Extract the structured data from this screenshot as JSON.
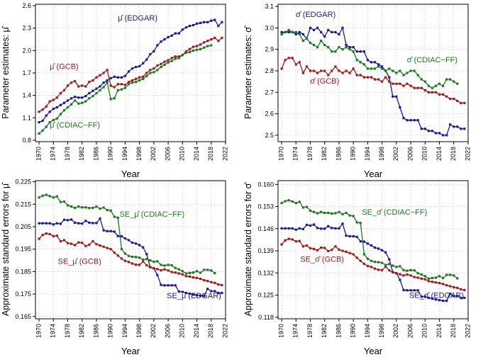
{
  "colors": {
    "EDGAR": "#1a1a9c",
    "GCB": "#a31a1a",
    "CDIAC-FF": "#1f7a1f",
    "grid": "#b8b8b8",
    "axis": "#000000"
  },
  "chart_data": [
    {
      "type": "line",
      "panel": "top-left",
      "xlabel": "Year",
      "ylabel": "Parameter estimates: μ̂",
      "xticks": [
        1970,
        1974,
        1978,
        1982,
        1986,
        1990,
        1994,
        1998,
        2002,
        2006,
        2010,
        2014,
        2018,
        2022
      ],
      "yticks": [
        "0.8",
        "1.1",
        "1.4",
        "1.7",
        "2.0",
        "2.3",
        "2.6"
      ],
      "xlim": [
        1969,
        2022
      ],
      "ylim": [
        0.78,
        2.62
      ],
      "grid": true,
      "annotations": [
        {
          "label": "μ̂ (EDGAR)",
          "series": "EDGAR",
          "x": 1997.5,
          "y": 2.4
        },
        {
          "label": "μ̂ (GCB)",
          "series": "GCB",
          "x": 1977,
          "y": 1.75
        },
        {
          "label": "μ̂ (CDIAC−FF)",
          "series": "CDIAC-FF",
          "x": 1980,
          "y": 0.97
        }
      ],
      "series": [
        {
          "name": "EDGAR",
          "x_start": 1970,
          "values": [
            1.04,
            1.06,
            1.13,
            1.18,
            1.22,
            1.24,
            1.27,
            1.3,
            1.33,
            1.36,
            1.38,
            1.37,
            1.37,
            1.39,
            1.43,
            1.46,
            1.49,
            1.52,
            1.57,
            1.6,
            1.63,
            1.65,
            1.64,
            1.64,
            1.66,
            1.72,
            1.76,
            1.78,
            1.79,
            1.83,
            1.88,
            1.95,
            1.99,
            2.07,
            2.12,
            2.15,
            2.18,
            2.2,
            2.23,
            2.23,
            2.28,
            2.31,
            2.33,
            2.34,
            2.36,
            2.37,
            2.38,
            2.38,
            2.4,
            2.41,
            2.33,
            2.38
          ]
        },
        {
          "name": "GCB",
          "x_start": 1970,
          "values": [
            1.18,
            1.21,
            1.25,
            1.32,
            1.34,
            1.37,
            1.43,
            1.47,
            1.53,
            1.57,
            1.59,
            1.52,
            1.53,
            1.52,
            1.58,
            1.6,
            1.64,
            1.67,
            1.7,
            1.74,
            1.53,
            1.51,
            1.55,
            1.55,
            1.54,
            1.58,
            1.6,
            1.62,
            1.64,
            1.65,
            1.7,
            1.74,
            1.76,
            1.8,
            1.82,
            1.85,
            1.87,
            1.9,
            1.92,
            1.92,
            1.94,
            1.99,
            2.02,
            2.05,
            2.06,
            2.08,
            2.11,
            2.13,
            2.15,
            2.17,
            2.13,
            2.17
          ]
        },
        {
          "name": "CDIAC-FF",
          "x_start": 1970,
          "values": [
            0.89,
            0.93,
            0.98,
            1.04,
            1.07,
            1.09,
            1.15,
            1.2,
            1.24,
            1.28,
            1.33,
            1.29,
            1.3,
            1.32,
            1.36,
            1.39,
            1.43,
            1.47,
            1.51,
            1.57,
            1.35,
            1.36,
            1.47,
            1.48,
            1.5,
            1.55,
            1.57,
            1.58,
            1.6,
            1.62,
            1.66,
            1.7,
            1.71,
            1.74,
            1.78,
            1.81,
            1.84,
            1.86,
            1.89,
            1.9,
            1.94,
            1.97,
            1.98,
            2.0,
            2.01,
            2.02,
            2.04,
            2.06,
            2.07
          ]
        }
      ]
    },
    {
      "type": "line",
      "panel": "top-right",
      "xlabel": "Year",
      "ylabel": "Parameter estimates: σ̂",
      "xticks": [
        1970,
        1974,
        1978,
        1982,
        1986,
        1990,
        1994,
        1998,
        2002,
        2006,
        2010,
        2014,
        2018,
        2022
      ],
      "yticks": [
        "2.5",
        "2.6",
        "2.7",
        "2.8",
        "2.9",
        "3.0",
        "3.1"
      ],
      "xlim": [
        1969,
        2022
      ],
      "ylim": [
        2.47,
        3.11
      ],
      "grid": true,
      "annotations": [
        {
          "label": "σ̂ (EDGAR)",
          "series": "EDGAR",
          "x": 1979.5,
          "y": 3.05
        },
        {
          "label": "σ̂ (CDIAC−FF)",
          "series": "CDIAC-FF",
          "x": 2012,
          "y": 2.84
        },
        {
          "label": "σ̂ (GCB)",
          "series": "GCB",
          "x": 1982,
          "y": 2.74
        }
      ],
      "series": [
        {
          "name": "EDGAR",
          "x_start": 1970,
          "values": [
            2.98,
            2.98,
            2.98,
            2.98,
            2.97,
            2.98,
            2.97,
            2.95,
            3.0,
            2.99,
            3.0,
            2.98,
            2.96,
            2.99,
            2.98,
            2.98,
            2.97,
            3.0,
            2.92,
            2.91,
            2.91,
            2.89,
            2.89,
            2.89,
            2.85,
            2.84,
            2.84,
            2.83,
            2.82,
            2.8,
            2.77,
            2.68,
            2.68,
            2.63,
            2.58,
            2.57,
            2.57,
            2.57,
            2.57,
            2.53,
            2.53,
            2.52,
            2.52,
            2.51,
            2.51,
            2.5,
            2.5,
            2.55,
            2.54,
            2.54,
            2.53,
            2.53
          ]
        },
        {
          "name": "GCB",
          "x_start": 1970,
          "values": [
            2.81,
            2.85,
            2.86,
            2.86,
            2.83,
            2.84,
            2.79,
            2.82,
            2.8,
            2.8,
            2.79,
            2.8,
            2.8,
            2.78,
            2.8,
            2.82,
            2.8,
            2.79,
            2.8,
            2.79,
            2.81,
            2.78,
            2.78,
            2.77,
            2.77,
            2.77,
            2.76,
            2.76,
            2.75,
            2.77,
            2.75,
            2.74,
            2.74,
            2.74,
            2.73,
            2.74,
            2.73,
            2.72,
            2.72,
            2.72,
            2.71,
            2.7,
            2.7,
            2.7,
            2.69,
            2.69,
            2.68,
            2.67,
            2.67,
            2.66,
            2.65,
            2.65
          ]
        },
        {
          "name": "CDIAC-FF",
          "x_start": 1970,
          "values": [
            2.97,
            2.98,
            2.99,
            2.98,
            2.98,
            2.97,
            2.94,
            2.95,
            2.93,
            2.92,
            2.91,
            2.94,
            2.92,
            2.91,
            2.89,
            2.89,
            2.91,
            2.9,
            2.91,
            2.9,
            2.89,
            2.85,
            2.84,
            2.83,
            2.81,
            2.81,
            2.81,
            2.82,
            2.81,
            2.8,
            2.81,
            2.8,
            2.79,
            2.8,
            2.78,
            2.79,
            2.8,
            2.8,
            2.78,
            2.76,
            2.75,
            2.73,
            2.72,
            2.73,
            2.74,
            2.73,
            2.76,
            2.76,
            2.75,
            2.74
          ]
        }
      ]
    },
    {
      "type": "line",
      "panel": "bottom-left",
      "xlabel": "Year",
      "ylabel": "Approximate standard errors for μ̂",
      "xticks": [
        1970,
        1974,
        1978,
        1982,
        1986,
        1990,
        1994,
        1998,
        2002,
        2006,
        2010,
        2014,
        2018,
        2022
      ],
      "yticks": [
        "0.165",
        "0.175",
        "0.185",
        "0.195",
        "0.205",
        "0.215",
        "0.225"
      ],
      "xlim": [
        1969,
        2022
      ],
      "ylim": [
        0.164,
        0.2255
      ],
      "grid": true,
      "annotations": [
        {
          "label": "SE_μ̂ (CDIAC−FF)",
          "series": "CDIAC-FF",
          "x": 2001.5,
          "y": 0.2094
        },
        {
          "label": "SE_μ̂ (GCB)",
          "series": "GCB",
          "x": 1981.3,
          "y": 0.1885
        },
        {
          "label": "SE_μ̂ (EDGAR)",
          "series": "EDGAR",
          "x": 2013.2,
          "y": 0.1732
        }
      ],
      "series": [
        {
          "name": "EDGAR",
          "x_start": 1970,
          "values": [
            0.2065,
            0.2065,
            0.2065,
            0.2065,
            0.206,
            0.2065,
            0.2063,
            0.2081,
            0.2079,
            0.2082,
            0.2068,
            0.2065,
            0.2064,
            0.2076,
            0.2068,
            0.2066,
            0.2066,
            0.2086,
            0.2034,
            0.203,
            0.203,
            0.2028,
            0.2008,
            0.2007,
            0.1998,
            0.199,
            0.1979,
            0.1975,
            0.1968,
            0.1958,
            0.1928,
            0.187,
            0.1865,
            0.1835,
            0.1791,
            0.1789,
            0.1789,
            0.1789,
            0.1789,
            0.1761,
            0.176,
            0.1755,
            0.1752,
            0.1748,
            0.1745,
            0.1743,
            0.1742,
            0.1773,
            0.1763,
            0.1763,
            0.1755,
            0.1755
          ]
        },
        {
          "name": "GCB",
          "x_start": 1970,
          "values": [
            0.1996,
            0.2013,
            0.202,
            0.2017,
            0.2008,
            0.201,
            0.1985,
            0.199,
            0.1977,
            0.1974,
            0.1968,
            0.198,
            0.1978,
            0.1964,
            0.197,
            0.1985,
            0.1972,
            0.1966,
            0.1961,
            0.1955,
            0.195,
            0.1935,
            0.1921,
            0.1908,
            0.1898,
            0.1893,
            0.1886,
            0.1881,
            0.188,
            0.1895,
            0.1878,
            0.187,
            0.1865,
            0.1861,
            0.1856,
            0.186,
            0.1855,
            0.1848,
            0.1846,
            0.1842,
            0.1838,
            0.183,
            0.1828,
            0.1824,
            0.1822,
            0.1818,
            0.1812,
            0.1808,
            0.1803,
            0.18,
            0.1793,
            0.179
          ]
        },
        {
          "name": "CDIAC-FF",
          "x_start": 1970,
          "values": [
            0.218,
            0.2188,
            0.2192,
            0.2186,
            0.218,
            0.2185,
            0.216,
            0.2162,
            0.2145,
            0.214,
            0.2134,
            0.214,
            0.2136,
            0.2136,
            0.2133,
            0.2134,
            0.214,
            0.213,
            0.2135,
            0.2124,
            0.2122,
            0.2094,
            0.209,
            0.195,
            0.193,
            0.192,
            0.1916,
            0.1915,
            0.1912,
            0.1903,
            0.1906,
            0.19,
            0.1894,
            0.1896,
            0.188,
            0.1877,
            0.188,
            0.1878,
            0.1866,
            0.186,
            0.1852,
            0.1842,
            0.1844,
            0.1846,
            0.1852,
            0.1845,
            0.1858,
            0.1858,
            0.1855,
            0.1843
          ]
        }
      ]
    },
    {
      "type": "line",
      "panel": "bottom-right",
      "xlabel": "Year",
      "ylabel": "Approximate standard errors for σ̂",
      "xticks": [
        1970,
        1974,
        1978,
        1982,
        1986,
        1990,
        1994,
        1998,
        2002,
        2006,
        2010,
        2014,
        2018,
        2022
      ],
      "yticks": [
        "0.118",
        "0.125",
        "0.132",
        "0.139",
        "0.146",
        "0.153",
        "0.160"
      ],
      "xlim": [
        1969,
        2022
      ],
      "ylim": [
        0.1175,
        0.1612
      ],
      "grid": true,
      "annotations": [
        {
          "label": "SE_σ̂ (CDIAC−FF)",
          "series": "CDIAC-FF",
          "x": 2001.5,
          "y": 0.1504
        },
        {
          "label": "SE_σ̂ (GCB)",
          "series": "GCB",
          "x": 1981.3,
          "y": 0.1355
        },
        {
          "label": "SE_σ̂ (EDGAR)",
          "series": "EDGAR",
          "x": 2013.2,
          "y": 0.1241
        }
      ],
      "series": [
        {
          "name": "EDGAR",
          "x_start": 1970,
          "values": [
            0.1461,
            0.1461,
            0.1461,
            0.1461,
            0.1457,
            0.1461,
            0.1459,
            0.1472,
            0.147,
            0.1473,
            0.1462,
            0.146,
            0.146,
            0.1468,
            0.1462,
            0.1461,
            0.1461,
            0.1476,
            0.1438,
            0.1436,
            0.1436,
            0.1434,
            0.142,
            0.1419,
            0.1413,
            0.1407,
            0.14,
            0.1397,
            0.1392,
            0.1385,
            0.1363,
            0.1323,
            0.1319,
            0.1298,
            0.1266,
            0.1265,
            0.1265,
            0.1265,
            0.1265,
            0.1245,
            0.1245,
            0.1241,
            0.1239,
            0.1236,
            0.1234,
            0.1232,
            0.1232,
            0.1254,
            0.1247,
            0.1247,
            0.1241,
            0.1241
          ]
        },
        {
          "name": "GCB",
          "x_start": 1970,
          "values": [
            0.141,
            0.1423,
            0.1428,
            0.1426,
            0.142,
            0.1421,
            0.1404,
            0.1407,
            0.1398,
            0.1396,
            0.1392,
            0.14,
            0.1399,
            0.1389,
            0.1393,
            0.1404,
            0.1394,
            0.139,
            0.1387,
            0.1383,
            0.1379,
            0.1368,
            0.1358,
            0.1349,
            0.1342,
            0.1339,
            0.1334,
            0.133,
            0.1329,
            0.134,
            0.1328,
            0.1322,
            0.1319,
            0.1316,
            0.1312,
            0.1315,
            0.1312,
            0.1307,
            0.1305,
            0.1302,
            0.13,
            0.1294,
            0.1292,
            0.129,
            0.1288,
            0.1285,
            0.1281,
            0.1278,
            0.1275,
            0.1273,
            0.1268,
            0.1266
          ]
        },
        {
          "name": "CDIAC-FF",
          "x_start": 1970,
          "values": [
            0.1541,
            0.1547,
            0.155,
            0.1546,
            0.1541,
            0.1545,
            0.1527,
            0.1529,
            0.1517,
            0.1513,
            0.1509,
            0.1513,
            0.151,
            0.151,
            0.1508,
            0.1509,
            0.1513,
            0.1506,
            0.151,
            0.1502,
            0.15,
            0.148,
            0.1478,
            0.1379,
            0.1365,
            0.1358,
            0.1355,
            0.1354,
            0.1352,
            0.1345,
            0.1348,
            0.1343,
            0.1339,
            0.1341,
            0.1329,
            0.1327,
            0.1329,
            0.1328,
            0.1319,
            0.1315,
            0.131,
            0.1302,
            0.1304,
            0.1305,
            0.131,
            0.1304,
            0.1314,
            0.1314,
            0.1312,
            0.1303
          ]
        }
      ]
    }
  ]
}
